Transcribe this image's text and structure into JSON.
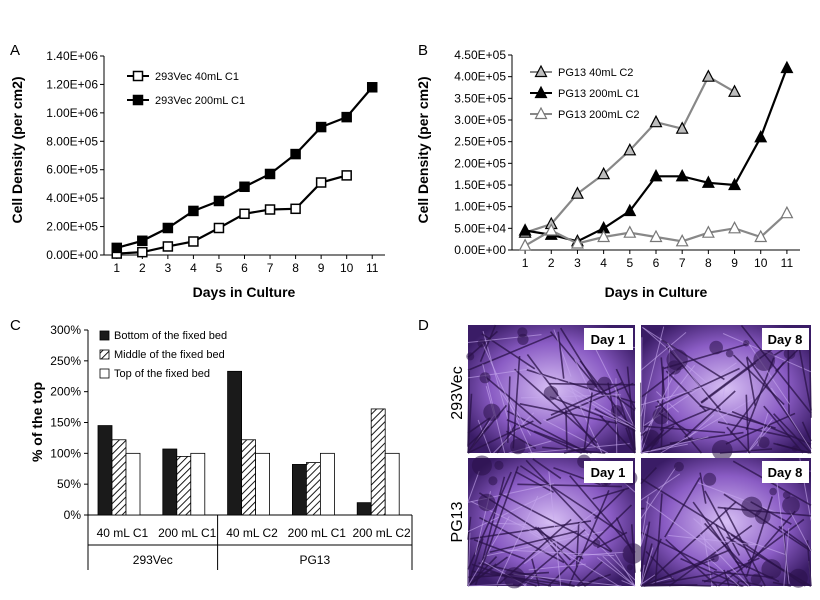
{
  "chart_data": [
    {
      "panel": "A",
      "type": "line",
      "xlabel": "Days in Culture",
      "ylabel": "Cell Density (per cm2)",
      "x": [
        1,
        2,
        3,
        4,
        5,
        6,
        7,
        8,
        9,
        10,
        11
      ],
      "xlim": [
        0.5,
        11.5
      ],
      "ylim": [
        0,
        1400000
      ],
      "yticks": [
        0,
        200000,
        400000,
        600000,
        800000,
        1000000,
        1200000,
        1400000
      ],
      "ytick_labels": [
        "0.00E+00",
        "2.00E+05",
        "4.00E+05",
        "6.00E+05",
        "8.00E+05",
        "1.00E+06",
        "1.20E+06",
        "1.40E+06"
      ],
      "legend_position": "top-left",
      "series": [
        {
          "name": "293Vec 40mL C1",
          "marker": "open-square",
          "x": [
            1,
            2,
            3,
            4,
            5,
            6,
            7,
            8,
            9,
            10
          ],
          "values": [
            10000,
            20000,
            60000,
            95000,
            190000,
            290000,
            320000,
            325000,
            510000,
            560000
          ]
        },
        {
          "name": "293Vec 200mL C1",
          "marker": "filled-square",
          "x": [
            1,
            2,
            3,
            4,
            5,
            6,
            7,
            8,
            9,
            10,
            11
          ],
          "values": [
            50000,
            100000,
            190000,
            310000,
            380000,
            480000,
            570000,
            710000,
            900000,
            970000,
            1180000
          ]
        }
      ]
    },
    {
      "panel": "B",
      "type": "line",
      "xlabel": "Days in Culture",
      "ylabel": "Cell Density (per cm2)",
      "x": [
        1,
        2,
        3,
        4,
        5,
        6,
        7,
        8,
        9,
        10,
        11
      ],
      "xlim": [
        0.5,
        11.5
      ],
      "ylim": [
        0,
        450000
      ],
      "yticks": [
        0,
        50000,
        100000,
        150000,
        200000,
        250000,
        300000,
        350000,
        400000,
        450000
      ],
      "ytick_labels": [
        "0.00E+00",
        "5.00E+04",
        "1.00E+05",
        "1.50E+05",
        "2.00E+05",
        "2.50E+05",
        "3.00E+05",
        "3.50E+05",
        "4.00E+05",
        "4.50E+05"
      ],
      "legend_position": "top-left",
      "series": [
        {
          "name": "PG13 40mL C2",
          "marker": "gray-triangle",
          "x": [
            1,
            2,
            3,
            4,
            5,
            6,
            7,
            8,
            9
          ],
          "values": [
            40000,
            60000,
            130000,
            175000,
            230000,
            295000,
            280000,
            400000,
            365000
          ]
        },
        {
          "name": "PG13 200mL C1",
          "marker": "filled-triangle",
          "x": [
            1,
            2,
            3,
            4,
            5,
            6,
            7,
            8,
            9,
            10,
            11
          ],
          "values": [
            45000,
            35000,
            20000,
            50000,
            90000,
            170000,
            170000,
            155000,
            150000,
            260000,
            420000
          ]
        },
        {
          "name": "PG13 200mL C2",
          "marker": "open-triangle",
          "x": [
            1,
            2,
            3,
            4,
            5,
            6,
            7,
            8,
            9,
            10,
            11
          ],
          "values": [
            10000,
            45000,
            15000,
            30000,
            40000,
            30000,
            20000,
            40000,
            50000,
            30000,
            85000
          ]
        }
      ]
    },
    {
      "panel": "C",
      "type": "bar",
      "ylabel": "% of the top",
      "ylim": [
        0,
        300
      ],
      "yticks": [
        0,
        50,
        100,
        150,
        200,
        250,
        300
      ],
      "ytick_labels": [
        "0%",
        "50%",
        "100%",
        "150%",
        "200%",
        "250%",
        "300%"
      ],
      "categories": [
        "40 mL C1",
        "200 mL C1",
        "40 mL C2",
        "200 mL C1",
        "200 mL C2"
      ],
      "groups": [
        {
          "label": "293Vec",
          "categories": [
            0,
            1
          ]
        },
        {
          "label": "PG13",
          "categories": [
            2,
            3,
            4
          ]
        }
      ],
      "legend_position": "top-left",
      "series": [
        {
          "name": "Bottom of the fixed bed",
          "fill": "#1a1a1a",
          "values": [
            145,
            107,
            233,
            82,
            20
          ]
        },
        {
          "name": "Middle of the fixed bed",
          "fill": "hatch",
          "values": [
            122,
            95,
            122,
            85,
            172
          ]
        },
        {
          "name": "Top of the fixed bed",
          "fill": "#ffffff",
          "values": [
            100,
            100,
            100,
            100,
            100
          ]
        }
      ]
    }
  ],
  "panels": {
    "a": "A",
    "b": "B",
    "c": "C",
    "d": "D"
  },
  "photos": {
    "row_labels": [
      "293Vec",
      "PG13"
    ],
    "day_labels": [
      "Day 1",
      "Day 8",
      "Day 1",
      "Day 8"
    ]
  },
  "colors": {
    "photo_dark": "#2a1148",
    "photo_mid": "#6a3fa3",
    "photo_light": "#c7a8ee"
  }
}
